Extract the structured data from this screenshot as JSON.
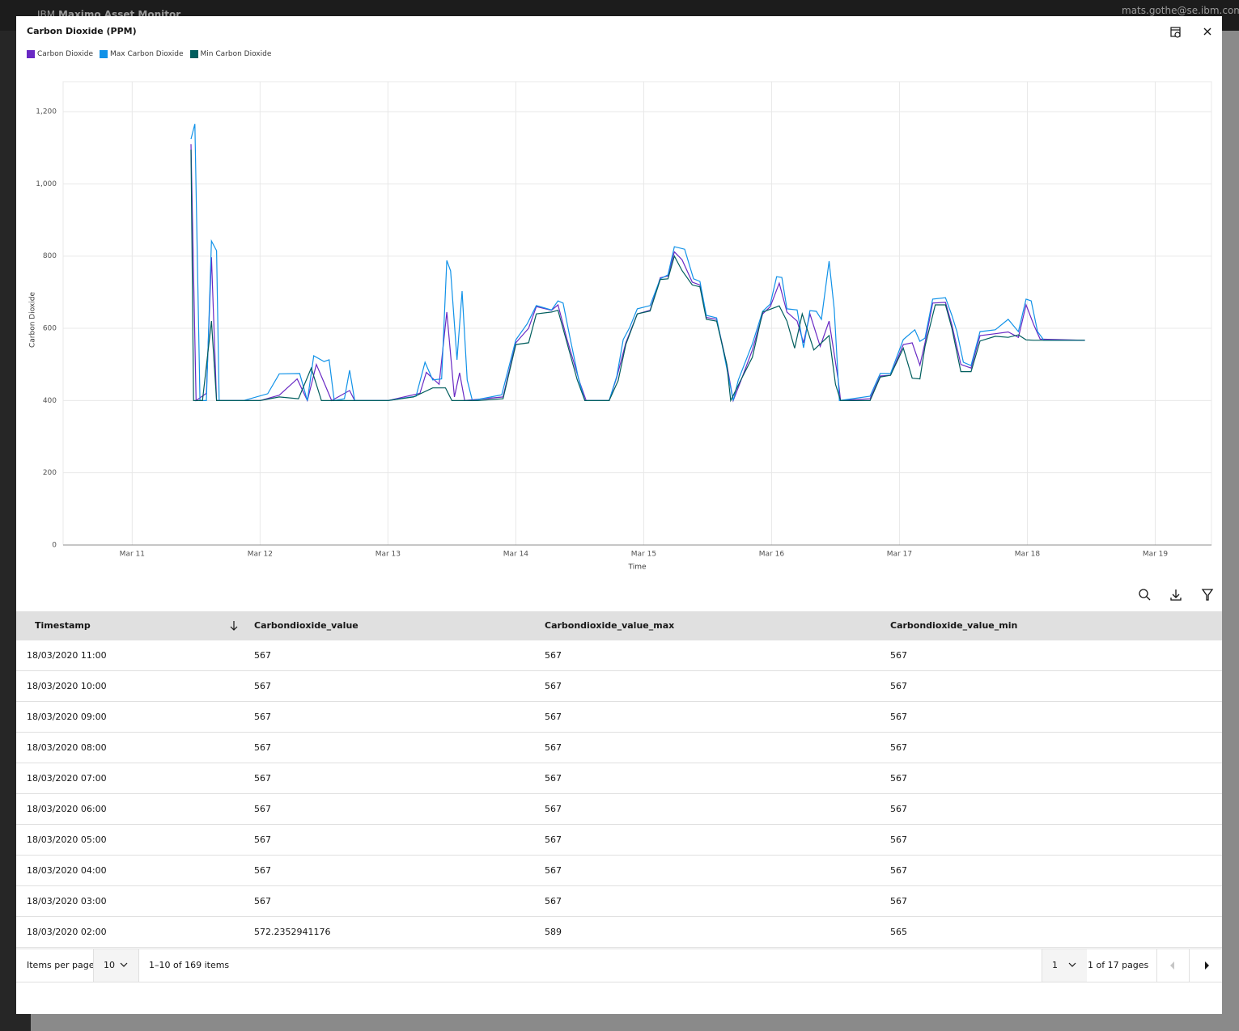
{
  "header": {
    "brand_prefix": "IBM",
    "brand": "Maximo Asset Monitor",
    "user": "mats.gothe@se.ibm.com"
  },
  "chart_data": {
    "type": "line",
    "title": "Carbon Dioxide (PPM)",
    "x_label": "Time",
    "y_label": "Carbon Dioxide",
    "xlim": [
      10.46,
      19.44
    ],
    "ylim": [
      0,
      1283
    ],
    "grid": true,
    "legend": "top-left",
    "xticks": [
      {
        "value": 11,
        "label": "Mar 11"
      },
      {
        "value": 12,
        "label": "Mar 12"
      },
      {
        "value": 13,
        "label": "Mar 13"
      },
      {
        "value": 14,
        "label": "Mar 14"
      },
      {
        "value": 15,
        "label": "Mar 15"
      },
      {
        "value": 16,
        "label": "Mar 16"
      },
      {
        "value": 17,
        "label": "Mar 17"
      },
      {
        "value": 18,
        "label": "Mar 18"
      },
      {
        "value": 19,
        "label": "Mar 19"
      }
    ],
    "yticks": [
      0,
      200,
      400,
      600,
      800,
      {
        "value": 1000,
        "label": "1,000"
      },
      {
        "value": 1200,
        "label": "1,200"
      }
    ],
    "series": [
      {
        "name": "Carbon Dioxide",
        "color": "#6929c4",
        "x": [
          11.46,
          11.5,
          11.58,
          11.62,
          11.66,
          12.0,
          12.15,
          12.29,
          12.37,
          12.44,
          12.5,
          12.56,
          12.7,
          12.74,
          13.0,
          13.25,
          13.3,
          13.4,
          13.46,
          13.52,
          13.56,
          13.6,
          13.9,
          14.0,
          14.1,
          14.16,
          14.28,
          14.33,
          14.4,
          14.5,
          14.55,
          14.73,
          14.79,
          14.86,
          14.95,
          15.05,
          15.13,
          15.19,
          15.24,
          15.3,
          15.38,
          15.44,
          15.49,
          15.57,
          15.65,
          15.7,
          15.76,
          15.85,
          15.93,
          15.99,
          16.06,
          16.12,
          16.2,
          16.25,
          16.3,
          16.38,
          16.45,
          16.52,
          16.54,
          16.77,
          16.85,
          16.93,
          17.03,
          17.1,
          17.16,
          17.2,
          17.26,
          17.36,
          17.41,
          17.48,
          17.56,
          17.63,
          17.75,
          17.85,
          17.93,
          17.99,
          18.05,
          18.1,
          18.45
        ],
        "values": [
          1110,
          400,
          420,
          797,
          400,
          400,
          415,
          460,
          400,
          500,
          450,
          400,
          428,
          400,
          400,
          420,
          478,
          445,
          645,
          410,
          477,
          400,
          410,
          560,
          600,
          660,
          650,
          665,
          570,
          450,
          400,
          400,
          465,
          560,
          640,
          650,
          740,
          745,
          812,
          790,
          728,
          720,
          630,
          625,
          500,
          400,
          455,
          540,
          640,
          660,
          725,
          645,
          620,
          560,
          640,
          550,
          620,
          460,
          400,
          405,
          468,
          470,
          555,
          560,
          498,
          560,
          670,
          672,
          610,
          500,
          490,
          580,
          585,
          590,
          575,
          665,
          610,
          570,
          567
        ]
      },
      {
        "name": "Max Carbon Dioxide",
        "color": "#1192e8",
        "x": [
          11.46,
          11.49,
          11.53,
          11.58,
          11.62,
          11.66,
          11.68,
          11.87,
          12.06,
          12.15,
          12.31,
          12.37,
          12.42,
          12.5,
          12.54,
          12.58,
          12.66,
          12.7,
          12.74,
          13.0,
          13.22,
          13.29,
          13.35,
          13.42,
          13.46,
          13.49,
          13.54,
          13.58,
          13.62,
          13.66,
          13.89,
          14.0,
          14.09,
          14.16,
          14.28,
          14.33,
          14.37,
          14.42,
          14.49,
          14.54,
          14.73,
          14.79,
          14.84,
          14.89,
          14.95,
          15.05,
          15.13,
          15.19,
          15.24,
          15.32,
          15.39,
          15.44,
          15.49,
          15.57,
          15.63,
          15.7,
          15.74,
          15.85,
          15.93,
          15.99,
          16.04,
          16.08,
          16.12,
          16.2,
          16.25,
          16.3,
          16.35,
          16.39,
          16.45,
          16.49,
          16.53,
          16.77,
          16.85,
          16.93,
          17.03,
          17.12,
          17.16,
          17.2,
          17.26,
          17.36,
          17.41,
          17.45,
          17.5,
          17.56,
          17.63,
          17.75,
          17.85,
          17.93,
          17.99,
          18.03,
          18.08,
          18.13,
          18.45
        ],
        "values": [
          1124,
          1166,
          400,
          400,
          842,
          815,
          400,
          400,
          419,
          474,
          475,
          400,
          524,
          508,
          513,
          400,
          405,
          484,
          400,
          400,
          412,
          506,
          457,
          460,
          788,
          759,
          513,
          703,
          457,
          400,
          416,
          568,
          613,
          663,
          651,
          676,
          670,
          580,
          461,
          400,
          400,
          468,
          569,
          602,
          654,
          663,
          737,
          748,
          826,
          819,
          737,
          730,
          636,
          629,
          524,
          400,
          457,
          557,
          647,
          667,
          743,
          741,
          654,
          651,
          546,
          649,
          647,
          625,
          786,
          654,
          400,
          412,
          475,
          475,
          569,
          596,
          564,
          573,
          681,
          685,
          636,
          591,
          506,
          497,
          591,
          596,
          625,
          591,
          681,
          676,
          591,
          567,
          567
        ]
      },
      {
        "name": "Min Carbon Dioxide",
        "color": "#005d5d",
        "x": [
          11.46,
          11.48,
          11.55,
          11.62,
          11.66,
          12.0,
          12.15,
          12.3,
          12.4,
          12.48,
          12.6,
          12.75,
          13.0,
          13.2,
          13.35,
          13.45,
          13.5,
          13.7,
          13.9,
          14.0,
          14.1,
          14.16,
          14.28,
          14.33,
          14.4,
          14.48,
          14.54,
          14.73,
          14.8,
          14.86,
          14.95,
          15.05,
          15.13,
          15.19,
          15.24,
          15.3,
          15.38,
          15.44,
          15.49,
          15.57,
          15.65,
          15.68,
          15.75,
          15.85,
          15.93,
          16.06,
          16.12,
          16.18,
          16.24,
          16.33,
          16.45,
          16.5,
          16.54,
          16.77,
          16.85,
          16.93,
          17.03,
          17.1,
          17.16,
          17.2,
          17.28,
          17.36,
          17.41,
          17.48,
          17.56,
          17.63,
          17.75,
          17.85,
          17.93,
          17.99,
          18.05,
          18.45
        ],
        "values": [
          1095,
          400,
          400,
          620,
          400,
          400,
          410,
          405,
          490,
          400,
          400,
          400,
          400,
          410,
          435,
          435,
          400,
          400,
          405,
          555,
          560,
          640,
          645,
          650,
          560,
          458,
          400,
          400,
          455,
          555,
          640,
          648,
          735,
          737,
          800,
          760,
          720,
          715,
          625,
          620,
          500,
          400,
          450,
          520,
          645,
          662,
          620,
          545,
          640,
          540,
          580,
          445,
          400,
          400,
          465,
          470,
          545,
          462,
          460,
          550,
          665,
          665,
          600,
          480,
          480,
          565,
          578,
          575,
          582,
          568,
          567,
          567
        ]
      }
    ]
  },
  "table": {
    "columns": [
      "Timestamp",
      "Carbondioxide_value",
      "Carbondioxide_value_max",
      "Carbondioxide_value_min"
    ],
    "rows": [
      [
        "18/03/2020 11:00",
        "567",
        "567",
        "567"
      ],
      [
        "18/03/2020 10:00",
        "567",
        "567",
        "567"
      ],
      [
        "18/03/2020 09:00",
        "567",
        "567",
        "567"
      ],
      [
        "18/03/2020 08:00",
        "567",
        "567",
        "567"
      ],
      [
        "18/03/2020 07:00",
        "567",
        "567",
        "567"
      ],
      [
        "18/03/2020 06:00",
        "567",
        "567",
        "567"
      ],
      [
        "18/03/2020 05:00",
        "567",
        "567",
        "567"
      ],
      [
        "18/03/2020 04:00",
        "567",
        "567",
        "567"
      ],
      [
        "18/03/2020 03:00",
        "567",
        "567",
        "567"
      ],
      [
        "18/03/2020 02:00",
        "572.2352941176",
        "589",
        "565"
      ]
    ]
  },
  "pagination": {
    "items_per_page_label": "Items per page:",
    "items_per_page": "10",
    "range": "1–10 of 169 items",
    "page": "1",
    "pages": "1 of 17 pages"
  }
}
